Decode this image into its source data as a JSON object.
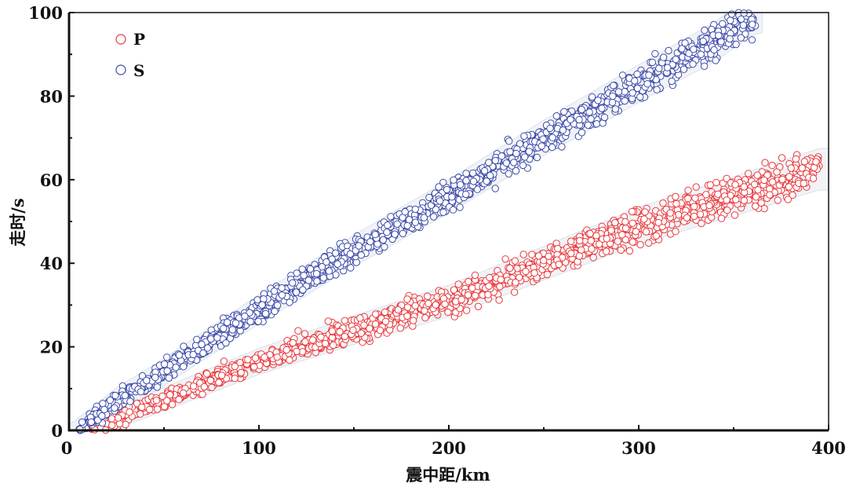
{
  "chart_data": {
    "type": "scatter",
    "title": "",
    "xlabel": "震中距/km",
    "ylabel": "走时/s",
    "xlim": [
      0,
      400
    ],
    "ylim": [
      0,
      100
    ],
    "xticks": [
      "0",
      "100",
      "200",
      "300",
      "400"
    ],
    "yticks": [
      "0",
      "20",
      "40",
      "60",
      "80",
      "100"
    ],
    "grid": false,
    "legend_position": "top-left",
    "series": [
      {
        "name": "P",
        "color": "#e8383d",
        "marker": "open-circle",
        "trend": [
          [
            12,
            0
          ],
          [
            25,
            3
          ],
          [
            50,
            7.5
          ],
          [
            75,
            12
          ],
          [
            100,
            16.5
          ],
          [
            150,
            24
          ],
          [
            200,
            31
          ],
          [
            250,
            40
          ],
          [
            300,
            49
          ],
          [
            350,
            56
          ],
          [
            395,
            62.5
          ]
        ],
        "band_halfwidth": [
          2.5,
          5
        ],
        "spread": 1.6
      },
      {
        "name": "S",
        "color": "#3b4aa8",
        "marker": "open-circle",
        "trend": [
          [
            5,
            0
          ],
          [
            25,
            7
          ],
          [
            50,
            14
          ],
          [
            75,
            21.5
          ],
          [
            100,
            29
          ],
          [
            150,
            43
          ],
          [
            200,
            56
          ],
          [
            250,
            70
          ],
          [
            300,
            83
          ],
          [
            340,
            93
          ],
          [
            362,
            100
          ]
        ],
        "band_halfwidth": [
          3,
          5
        ],
        "spread": 1.7
      }
    ]
  }
}
